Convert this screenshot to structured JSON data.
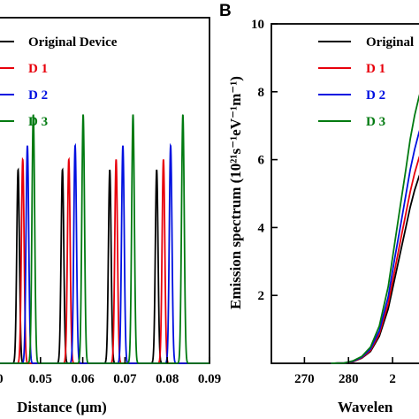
{
  "chart_data": [
    {
      "type": "line",
      "panel_letter": "",
      "xlabel": "Distance (μm)",
      "ylabel": "",
      "xlim": [
        0.04,
        0.09
      ],
      "x_ticks": [
        {
          "value": 0.05,
          "label": "0.05"
        },
        {
          "value": 0.06,
          "label": "0.06"
        },
        {
          "value": 0.07,
          "label": "0.07"
        },
        {
          "value": 0.08,
          "label": "0.08"
        },
        {
          "value": 0.09,
          "label": "0.09"
        }
      ],
      "x_partial_tick": {
        "value": 0.04,
        "label": ".0"
      },
      "ylim": [
        0,
        10
      ],
      "legend_placement": "top-left",
      "series": [
        {
          "name": "Original Device",
          "color": "#000000",
          "peaks_x": [
            0.0447,
            0.0552,
            0.0664,
            0.0775
          ],
          "peak_y": 5.6,
          "width": 0.00045
        },
        {
          "name": "D 1",
          "color": "#e8000b",
          "peaks_x": [
            0.0458,
            0.0567,
            0.0679,
            0.0791
          ],
          "peak_y": 5.9,
          "width": 0.00045
        },
        {
          "name": "D 2",
          "color": "#0010e0",
          "peaks_x": [
            0.0469,
            0.0582,
            0.0695,
            0.0808
          ],
          "peak_y": 6.3,
          "width": 0.00045
        },
        {
          "name": "D 3",
          "color": "#007a10",
          "peaks_x": [
            0.0483,
            0.0601,
            0.0719,
            0.0837
          ],
          "peak_y": 7.2,
          "width": 0.00045
        }
      ],
      "grid": false
    },
    {
      "type": "line",
      "panel_letter": "B",
      "xlabel": "Wavelen",
      "ylabel": "Emission spectrum (10²¹s⁻¹eV⁻¹m⁻¹)",
      "xlim": [
        262.5,
        297
      ],
      "x_ticks": [
        {
          "value": 270,
          "label": "270"
        },
        {
          "value": 280,
          "label": "280"
        }
      ],
      "x_partial_tick": {
        "value": 290,
        "label": "2"
      },
      "ylim": [
        0,
        10
      ],
      "y_ticks": [
        {
          "value": 2,
          "label": "2"
        },
        {
          "value": 4,
          "label": "4"
        },
        {
          "value": 6,
          "label": "6"
        },
        {
          "value": 8,
          "label": "8"
        },
        {
          "value": 10,
          "label": "10"
        }
      ],
      "legend_placement": "top-right",
      "series": [
        {
          "name": "Original",
          "color": "#000000",
          "x": [
            276,
            279,
            281,
            283,
            285,
            287,
            289,
            290.5,
            292,
            293,
            294,
            295,
            296,
            297
          ],
          "y": [
            0,
            0.01,
            0.05,
            0.15,
            0.35,
            0.8,
            1.6,
            2.5,
            3.4,
            4.0,
            4.6,
            5.1,
            5.5,
            5.8
          ]
        },
        {
          "name": "D 1",
          "color": "#e8000b",
          "x": [
            276,
            279,
            281,
            283,
            285,
            287,
            289,
            290.5,
            292,
            293,
            294,
            295,
            296,
            297
          ],
          "y": [
            0,
            0.01,
            0.05,
            0.16,
            0.38,
            0.87,
            1.75,
            2.75,
            3.75,
            4.4,
            5.05,
            5.6,
            6.05,
            6.4
          ]
        },
        {
          "name": "D 2",
          "color": "#0010e0",
          "x": [
            276,
            279,
            281,
            283,
            285,
            287,
            289,
            290.5,
            292,
            293,
            294,
            295,
            296,
            297
          ],
          "y": [
            0,
            0.01,
            0.06,
            0.18,
            0.42,
            0.96,
            1.95,
            3.1,
            4.2,
            4.95,
            5.7,
            6.3,
            6.8,
            7.2
          ]
        },
        {
          "name": "D 3",
          "color": "#007a10",
          "x": [
            276,
            279,
            281,
            283,
            285,
            287,
            289,
            290.5,
            292,
            293,
            294,
            295,
            296,
            297
          ],
          "y": [
            0,
            0.01,
            0.07,
            0.2,
            0.48,
            1.1,
            2.25,
            3.55,
            4.85,
            5.7,
            6.6,
            7.3,
            7.85,
            8.3
          ]
        }
      ],
      "grid": false
    }
  ]
}
